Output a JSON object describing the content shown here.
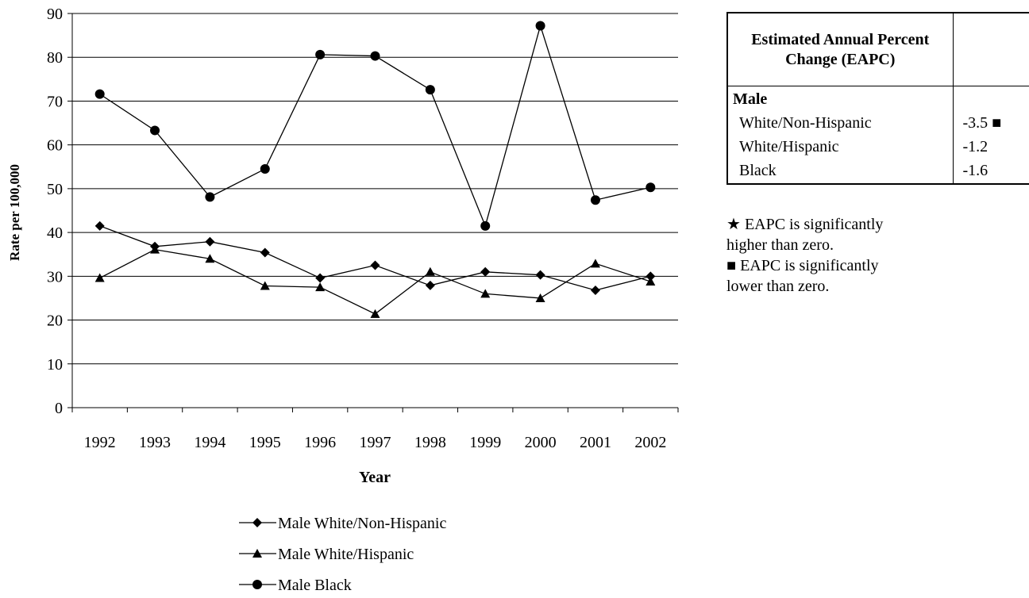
{
  "chart_data": {
    "type": "line",
    "x": [
      "1992",
      "1993",
      "1994",
      "1995",
      "1996",
      "1997",
      "1998",
      "1999",
      "2000",
      "2001",
      "2002"
    ],
    "xlabel": "Year",
    "ylabel": "Rate per 100,000",
    "ylim": [
      0,
      90
    ],
    "yticks": [
      0,
      10,
      20,
      30,
      40,
      50,
      60,
      70,
      80,
      90
    ],
    "grid": "horizontal",
    "legend_position": "bottom",
    "series": [
      {
        "name": "Male White/Non-Hispanic",
        "marker": "diamond",
        "values": [
          41.5,
          36.8,
          37.9,
          35.4,
          29.6,
          32.5,
          27.9,
          31.0,
          30.3,
          26.8,
          30.0
        ]
      },
      {
        "name": "Male White/Hispanic",
        "marker": "triangle",
        "values": [
          29.6,
          36.1,
          34.0,
          27.8,
          27.5,
          21.4,
          31.0,
          26.0,
          25.0,
          32.9,
          28.8
        ]
      },
      {
        "name": "Male Black",
        "marker": "circle",
        "values": [
          71.6,
          63.3,
          48.1,
          54.5,
          80.6,
          80.3,
          72.6,
          41.5,
          87.2,
          47.4,
          50.3
        ]
      }
    ]
  },
  "eapc_table": {
    "header": "Estimated Annual Percent Change (EAPC)",
    "category": "Male",
    "rows": [
      {
        "label": "White/Non-Hispanic",
        "value": "-3.5",
        "flag": "■"
      },
      {
        "label": "White/Hispanic",
        "value": "-1.2",
        "flag": ""
      },
      {
        "label": "Black",
        "value": "-1.6",
        "flag": ""
      }
    ]
  },
  "notes": {
    "higher": {
      "symbol": "★",
      "text": "EAPC is significantly higher than zero."
    },
    "lower": {
      "symbol": "■",
      "text": "EAPC is significantly lower than zero."
    }
  }
}
